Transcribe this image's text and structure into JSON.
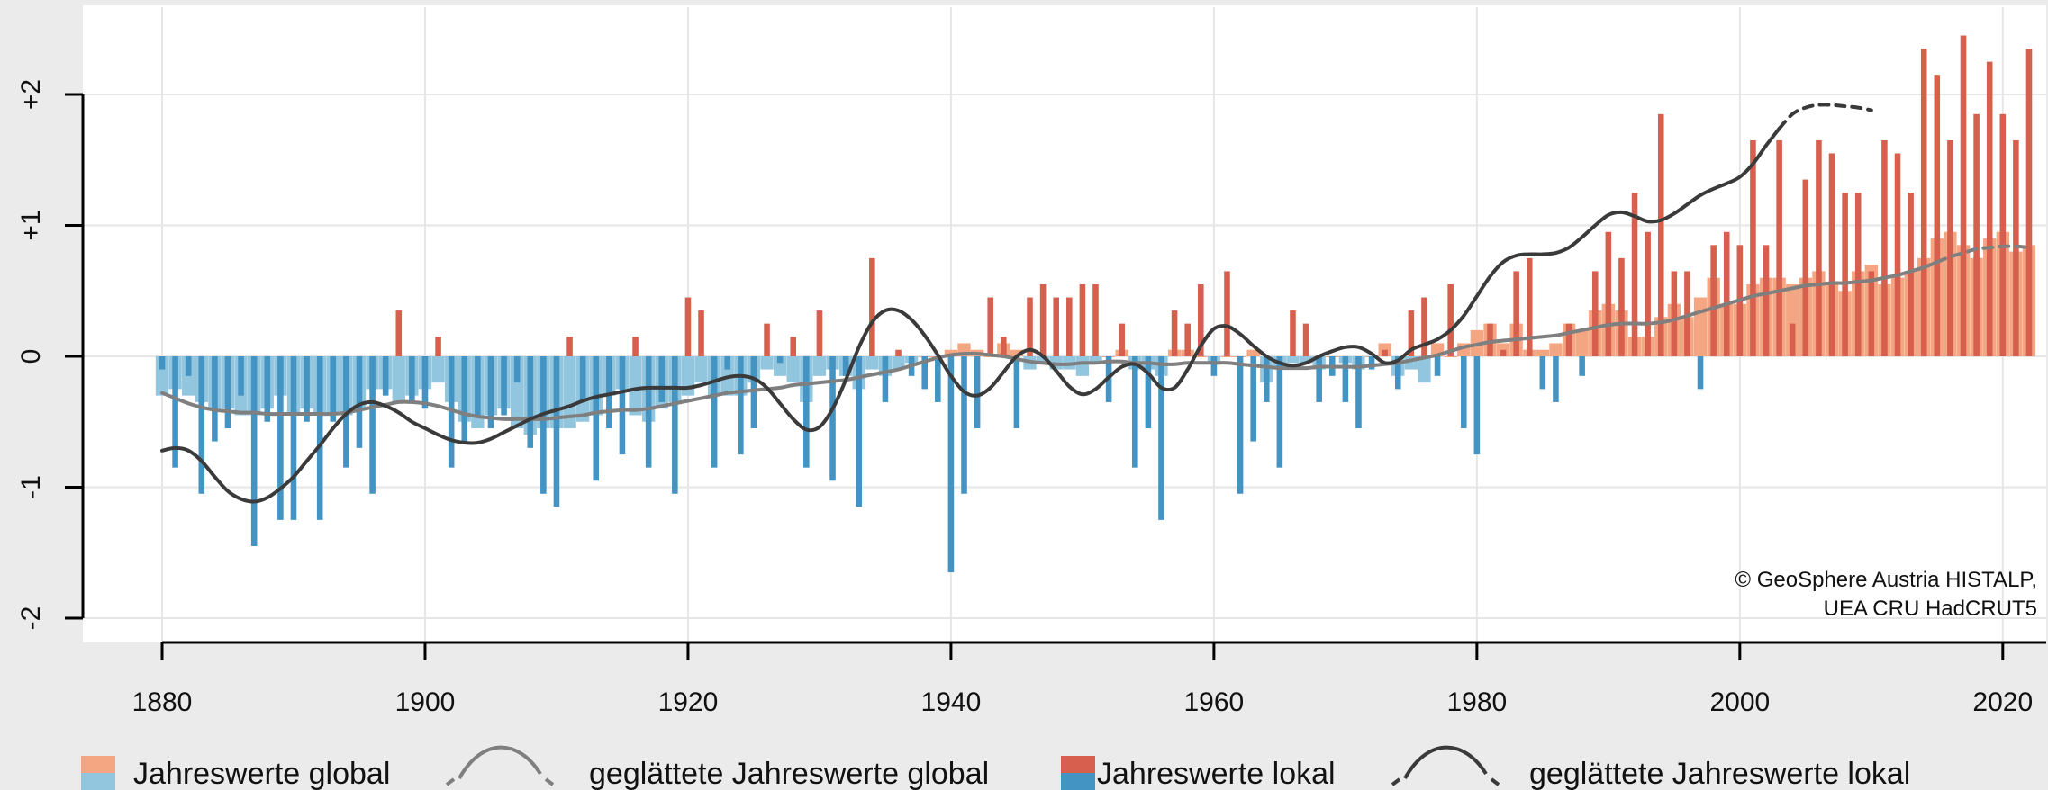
{
  "chart_data": {
    "type": "bar",
    "x_range": [
      1879,
      2023
    ],
    "ylim": [
      -2.2,
      2.5
    ],
    "x_ticks": [
      "1880",
      "1900",
      "1920",
      "1940",
      "1960",
      "1980",
      "2000",
      "2020"
    ],
    "y_ticks": [
      "-2",
      "-1",
      "0",
      "+1",
      "+2"
    ],
    "grid": true,
    "years": [
      1880,
      1881,
      1882,
      1883,
      1884,
      1885,
      1886,
      1887,
      1888,
      1889,
      1890,
      1891,
      1892,
      1893,
      1894,
      1895,
      1896,
      1897,
      1898,
      1899,
      1900,
      1901,
      1902,
      1903,
      1904,
      1905,
      1906,
      1907,
      1908,
      1909,
      1910,
      1911,
      1912,
      1913,
      1914,
      1915,
      1916,
      1917,
      1918,
      1919,
      1920,
      1921,
      1922,
      1923,
      1924,
      1925,
      1926,
      1927,
      1928,
      1929,
      1930,
      1931,
      1932,
      1933,
      1934,
      1935,
      1936,
      1937,
      1938,
      1939,
      1940,
      1941,
      1942,
      1943,
      1944,
      1945,
      1946,
      1947,
      1948,
      1949,
      1950,
      1951,
      1952,
      1953,
      1954,
      1955,
      1956,
      1957,
      1958,
      1959,
      1960,
      1961,
      1962,
      1963,
      1964,
      1965,
      1966,
      1967,
      1968,
      1969,
      1970,
      1971,
      1972,
      1973,
      1974,
      1975,
      1976,
      1977,
      1978,
      1979,
      1980,
      1981,
      1982,
      1983,
      1984,
      1985,
      1986,
      1987,
      1988,
      1989,
      1990,
      1991,
      1992,
      1993,
      1994,
      1995,
      1996,
      1997,
      1998,
      1999,
      2000,
      2001,
      2002,
      2003,
      2004,
      2005,
      2006,
      2007,
      2008,
      2009,
      2010,
      2011,
      2012,
      2013,
      2014,
      2015,
      2016,
      2017,
      2018,
      2019,
      2020,
      2021,
      2022
    ],
    "series": [
      {
        "role": "global_annual",
        "values": [
          -0.3,
          -0.25,
          -0.3,
          -0.35,
          -0.4,
          -0.4,
          -0.45,
          -0.45,
          -0.4,
          -0.3,
          -0.45,
          -0.4,
          -0.45,
          -0.45,
          -0.45,
          -0.4,
          -0.25,
          -0.25,
          -0.35,
          -0.3,
          -0.25,
          -0.2,
          -0.35,
          -0.5,
          -0.55,
          -0.45,
          -0.4,
          -0.55,
          -0.6,
          -0.55,
          -0.55,
          -0.55,
          -0.5,
          -0.45,
          -0.3,
          -0.25,
          -0.45,
          -0.5,
          -0.4,
          -0.35,
          -0.3,
          -0.2,
          -0.3,
          -0.3,
          -0.3,
          -0.2,
          -0.1,
          -0.15,
          -0.2,
          -0.35,
          -0.15,
          -0.1,
          -0.15,
          -0.25,
          -0.1,
          -0.15,
          -0.1,
          -0.05,
          0.0,
          0.0,
          0.05,
          0.1,
          0.05,
          0.0,
          0.1,
          0.05,
          -0.1,
          -0.05,
          -0.1,
          -0.1,
          -0.15,
          -0.05,
          0.0,
          0.05,
          -0.1,
          -0.1,
          -0.15,
          0.05,
          0.05,
          0.0,
          -0.05,
          0.0,
          0.0,
          0.05,
          -0.2,
          -0.1,
          -0.05,
          -0.05,
          -0.1,
          0.0,
          -0.05,
          -0.1,
          0.0,
          0.1,
          -0.15,
          -0.1,
          -0.2,
          0.1,
          0.0,
          0.1,
          0.2,
          0.25,
          0.1,
          0.25,
          0.05,
          0.05,
          0.1,
          0.25,
          0.2,
          0.35,
          0.4,
          0.35,
          0.15,
          0.15,
          0.3,
          0.4,
          0.3,
          0.45,
          0.6,
          0.4,
          0.4,
          0.55,
          0.6,
          0.6,
          0.55,
          0.6,
          0.65,
          0.55,
          0.5,
          0.65,
          0.7,
          0.55,
          0.6,
          0.65,
          0.75,
          0.9,
          0.95,
          0.85,
          0.75,
          0.9,
          0.95,
          0.8,
          0.85
        ]
      },
      {
        "role": "local_annual",
        "values": [
          -0.1,
          -0.85,
          -0.15,
          -1.05,
          -0.65,
          -0.55,
          -0.3,
          -1.45,
          -0.5,
          -1.25,
          -1.25,
          -0.5,
          -1.25,
          -0.5,
          -0.85,
          -0.7,
          -1.05,
          -0.3,
          0.35,
          -0.35,
          -0.4,
          0.15,
          -0.85,
          -0.65,
          -0.45,
          -0.55,
          -0.45,
          -0.2,
          -0.7,
          -1.05,
          -1.15,
          0.15,
          -0.35,
          -0.95,
          -0.55,
          -0.75,
          0.15,
          -0.85,
          -0.35,
          -1.05,
          0.45,
          0.35,
          -0.85,
          -0.1,
          -0.75,
          -0.55,
          0.25,
          -0.05,
          0.15,
          -0.85,
          0.35,
          -0.95,
          -0.15,
          -1.15,
          0.75,
          -0.35,
          0.05,
          -0.15,
          -0.25,
          -0.35,
          -1.65,
          -1.05,
          -0.55,
          0.45,
          0.15,
          -0.55,
          0.45,
          0.55,
          0.45,
          0.45,
          0.55,
          0.55,
          -0.35,
          0.25,
          -0.85,
          -0.55,
          -1.25,
          0.35,
          0.25,
          0.55,
          -0.15,
          0.65,
          -1.05,
          -0.65,
          -0.35,
          -0.85,
          0.35,
          0.25,
          -0.35,
          -0.15,
          -0.35,
          -0.55,
          -0.1,
          0.05,
          -0.25,
          0.35,
          0.45,
          -0.15,
          0.55,
          -0.55,
          -0.75,
          0.25,
          0.05,
          0.65,
          0.75,
          -0.25,
          -0.35,
          0.25,
          -0.15,
          0.65,
          0.95,
          0.75,
          1.25,
          0.95,
          1.85,
          0.65,
          0.65,
          -0.25,
          0.85,
          0.95,
          0.85,
          1.65,
          0.85,
          1.65,
          0.25,
          1.35,
          1.65,
          1.55,
          1.25,
          1.25,
          0.65,
          1.65,
          1.55,
          1.25,
          2.35,
          2.15,
          1.65,
          2.45,
          1.85,
          2.25,
          1.85,
          1.65,
          2.35
        ]
      },
      {
        "role": "global_smoothed",
        "values": [
          -0.28,
          -0.32,
          -0.36,
          -0.39,
          -0.41,
          -0.42,
          -0.43,
          -0.43,
          -0.44,
          -0.44,
          -0.44,
          -0.44,
          -0.44,
          -0.44,
          -0.43,
          -0.41,
          -0.39,
          -0.37,
          -0.35,
          -0.35,
          -0.36,
          -0.38,
          -0.41,
          -0.44,
          -0.46,
          -0.47,
          -0.48,
          -0.48,
          -0.48,
          -0.48,
          -0.47,
          -0.46,
          -0.45,
          -0.43,
          -0.42,
          -0.41,
          -0.41,
          -0.4,
          -0.38,
          -0.36,
          -0.34,
          -0.32,
          -0.3,
          -0.28,
          -0.27,
          -0.26,
          -0.25,
          -0.24,
          -0.22,
          -0.21,
          -0.2,
          -0.19,
          -0.18,
          -0.16,
          -0.14,
          -0.12,
          -0.1,
          -0.07,
          -0.04,
          -0.01,
          0.01,
          0.02,
          0.02,
          0.01,
          0.0,
          -0.02,
          -0.04,
          -0.05,
          -0.06,
          -0.06,
          -0.05,
          -0.05,
          -0.04,
          -0.04,
          -0.05,
          -0.05,
          -0.06,
          -0.06,
          -0.05,
          -0.05,
          -0.05,
          -0.05,
          -0.06,
          -0.07,
          -0.08,
          -0.09,
          -0.09,
          -0.09,
          -0.08,
          -0.08,
          -0.08,
          -0.08,
          -0.07,
          -0.06,
          -0.05,
          -0.03,
          -0.01,
          0.01,
          0.04,
          0.07,
          0.09,
          0.11,
          0.12,
          0.13,
          0.14,
          0.15,
          0.16,
          0.18,
          0.2,
          0.22,
          0.24,
          0.25,
          0.25,
          0.25,
          0.26,
          0.28,
          0.31,
          0.34,
          0.37,
          0.4,
          0.43,
          0.46,
          0.48,
          0.5,
          0.52,
          0.54,
          0.55,
          0.56,
          0.56,
          0.57,
          0.58,
          0.6,
          0.62,
          0.65,
          0.68,
          0.72,
          0.76,
          0.79,
          0.82,
          0.83,
          0.84,
          0.84,
          0.83
        ]
      },
      {
        "role": "local_smoothed",
        "values": [
          -0.72,
          -0.7,
          -0.72,
          -0.8,
          -0.92,
          -1.03,
          -1.09,
          -1.11,
          -1.08,
          -1.01,
          -0.92,
          -0.8,
          -0.68,
          -0.55,
          -0.44,
          -0.37,
          -0.35,
          -0.38,
          -0.43,
          -0.5,
          -0.55,
          -0.6,
          -0.64,
          -0.66,
          -0.66,
          -0.63,
          -0.58,
          -0.53,
          -0.48,
          -0.44,
          -0.41,
          -0.38,
          -0.34,
          -0.31,
          -0.29,
          -0.27,
          -0.25,
          -0.24,
          -0.24,
          -0.24,
          -0.24,
          -0.22,
          -0.19,
          -0.16,
          -0.15,
          -0.17,
          -0.24,
          -0.36,
          -0.48,
          -0.56,
          -0.54,
          -0.4,
          -0.18,
          0.07,
          0.26,
          0.35,
          0.35,
          0.28,
          0.16,
          0.01,
          -0.15,
          -0.27,
          -0.3,
          -0.24,
          -0.12,
          0.0,
          0.05,
          0.0,
          -0.11,
          -0.23,
          -0.29,
          -0.25,
          -0.16,
          -0.08,
          -0.06,
          -0.13,
          -0.24,
          -0.24,
          -0.1,
          0.08,
          0.21,
          0.23,
          0.17,
          0.08,
          0.0,
          -0.05,
          -0.07,
          -0.05,
          0.0,
          0.04,
          0.07,
          0.07,
          0.02,
          -0.05,
          -0.03,
          0.05,
          0.09,
          0.13,
          0.2,
          0.31,
          0.46,
          0.61,
          0.72,
          0.77,
          0.78,
          0.78,
          0.79,
          0.83,
          0.91,
          1.0,
          1.08,
          1.1,
          1.07,
          1.03,
          1.04,
          1.09,
          1.16,
          1.23,
          1.28,
          1.32,
          1.37,
          1.47,
          1.61,
          1.74,
          1.85,
          1.9,
          1.92,
          1.92,
          1.91,
          1.9,
          1.88
        ]
      }
    ],
    "legend": [
      {
        "label": "Jahreswerte global",
        "kind": "bars",
        "colors": [
          "#f4a582",
          "#92c5de"
        ]
      },
      {
        "label": "geglättete Jahreswerte global",
        "kind": "line",
        "color": "#7f7f7f"
      },
      {
        "label": "Jahreswerte lokal",
        "kind": "bars",
        "colors": [
          "#d6604d",
          "#4393c3"
        ]
      },
      {
        "label": "geglättete Jahreswerte lokal",
        "kind": "line",
        "color": "#3a3a3a"
      }
    ],
    "annotation": [
      "© GeoSphere Austria HISTALP,",
      "UEA CRU HadCRUT5"
    ],
    "colors": {
      "global_pos": "#f4a582",
      "global_neg": "#92c5de",
      "local_pos": "#d6604d",
      "local_neg": "#4393c3",
      "global_line": "#7f7f7f",
      "local_line": "#3a3a3a",
      "grid": "#e6e6e6"
    }
  }
}
